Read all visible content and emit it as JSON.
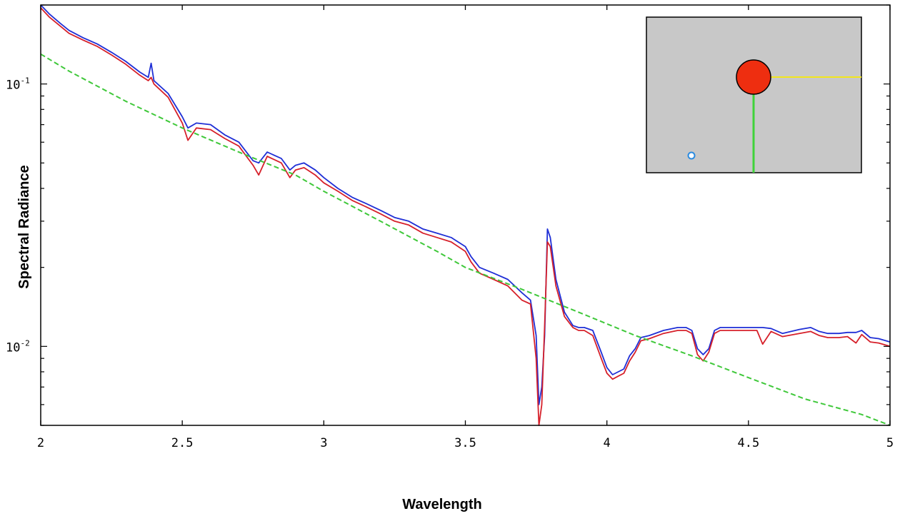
{
  "chart_data": {
    "type": "line",
    "xlabel": "Wavelength",
    "ylabel": "Spectral Radiance",
    "xlim": [
      2,
      5
    ],
    "ylim": [
      0.005,
      0.2
    ],
    "yscale": "log",
    "grid": false,
    "x_ticks": [
      2,
      2.5,
      3,
      3.5,
      4,
      4.5,
      5
    ],
    "x_tick_labels": [
      "2",
      "2.5",
      "3",
      "3.5",
      "4",
      "4.5",
      "5"
    ],
    "y_ticks": [
      {
        "value": 0.1,
        "base": "10",
        "exp": "-1"
      },
      {
        "value": 0.01,
        "base": "10",
        "exp": "-2"
      }
    ],
    "series": [
      {
        "color": "#1f2fd6",
        "x": [
          2.0,
          2.03,
          2.07,
          2.1,
          2.15,
          2.2,
          2.25,
          2.3,
          2.35,
          2.38,
          2.39,
          2.4,
          2.45,
          2.5,
          2.52,
          2.55,
          2.6,
          2.65,
          2.7,
          2.75,
          2.77,
          2.8,
          2.85,
          2.88,
          2.9,
          2.93,
          2.97,
          3.0,
          3.05,
          3.1,
          3.15,
          3.2,
          3.25,
          3.3,
          3.35,
          3.4,
          3.45,
          3.5,
          3.52,
          3.55,
          3.6,
          3.65,
          3.7,
          3.73,
          3.75,
          3.76,
          3.77,
          3.78,
          3.79,
          3.8,
          3.82,
          3.85,
          3.88,
          3.9,
          3.92,
          3.95,
          3.98,
          4.0,
          4.02,
          4.04,
          4.06,
          4.08,
          4.1,
          4.12,
          4.15,
          4.2,
          4.25,
          4.28,
          4.3,
          4.32,
          4.34,
          4.36,
          4.38,
          4.4,
          4.45,
          4.5,
          4.53,
          4.55,
          4.58,
          4.62,
          4.68,
          4.72,
          4.75,
          4.78,
          4.82,
          4.85,
          4.88,
          4.9,
          4.93,
          4.96,
          5.0
        ],
        "y": [
          0.2,
          0.185,
          0.17,
          0.16,
          0.15,
          0.142,
          0.132,
          0.122,
          0.111,
          0.106,
          0.12,
          0.103,
          0.092,
          0.075,
          0.068,
          0.071,
          0.07,
          0.064,
          0.06,
          0.051,
          0.05,
          0.055,
          0.052,
          0.047,
          0.049,
          0.05,
          0.047,
          0.044,
          0.04,
          0.037,
          0.035,
          0.033,
          0.031,
          0.03,
          0.028,
          0.027,
          0.026,
          0.024,
          0.022,
          0.02,
          0.019,
          0.018,
          0.016,
          0.015,
          0.011,
          0.006,
          0.007,
          0.011,
          0.028,
          0.026,
          0.018,
          0.0135,
          0.012,
          0.0118,
          0.0118,
          0.0115,
          0.0095,
          0.0083,
          0.0078,
          0.008,
          0.0082,
          0.0092,
          0.0098,
          0.0108,
          0.011,
          0.0115,
          0.0118,
          0.0118,
          0.0115,
          0.0098,
          0.0093,
          0.0098,
          0.0115,
          0.0118,
          0.0118,
          0.0118,
          0.0118,
          0.0118,
          0.0117,
          0.0112,
          0.0116,
          0.0118,
          0.0114,
          0.0112,
          0.0112,
          0.0113,
          0.0113,
          0.0115,
          0.0108,
          0.0107,
          0.0104
        ]
      },
      {
        "color": "#d6202a",
        "x": [
          2.0,
          2.03,
          2.07,
          2.1,
          2.15,
          2.2,
          2.25,
          2.3,
          2.35,
          2.38,
          2.39,
          2.4,
          2.45,
          2.5,
          2.52,
          2.55,
          2.6,
          2.65,
          2.7,
          2.75,
          2.77,
          2.8,
          2.85,
          2.88,
          2.9,
          2.93,
          2.97,
          3.0,
          3.05,
          3.1,
          3.15,
          3.2,
          3.25,
          3.3,
          3.35,
          3.4,
          3.45,
          3.5,
          3.52,
          3.55,
          3.6,
          3.65,
          3.7,
          3.73,
          3.75,
          3.76,
          3.77,
          3.78,
          3.79,
          3.8,
          3.82,
          3.85,
          3.88,
          3.9,
          3.92,
          3.95,
          3.98,
          4.0,
          4.02,
          4.04,
          4.06,
          4.08,
          4.1,
          4.12,
          4.15,
          4.2,
          4.25,
          4.28,
          4.3,
          4.32,
          4.34,
          4.36,
          4.38,
          4.4,
          4.45,
          4.5,
          4.53,
          4.55,
          4.58,
          4.62,
          4.68,
          4.72,
          4.75,
          4.78,
          4.82,
          4.85,
          4.88,
          4.9,
          4.93,
          4.96,
          5.0
        ],
        "y": [
          0.195,
          0.18,
          0.166,
          0.156,
          0.147,
          0.139,
          0.129,
          0.119,
          0.108,
          0.103,
          0.106,
          0.1,
          0.089,
          0.071,
          0.061,
          0.068,
          0.067,
          0.062,
          0.058,
          0.049,
          0.045,
          0.053,
          0.05,
          0.044,
          0.047,
          0.048,
          0.045,
          0.042,
          0.039,
          0.036,
          0.034,
          0.032,
          0.03,
          0.029,
          0.027,
          0.026,
          0.025,
          0.023,
          0.021,
          0.019,
          0.018,
          0.017,
          0.015,
          0.0145,
          0.009,
          0.005,
          0.006,
          0.012,
          0.025,
          0.024,
          0.017,
          0.013,
          0.0118,
          0.0115,
          0.0115,
          0.011,
          0.009,
          0.0079,
          0.0075,
          0.0077,
          0.0079,
          0.0088,
          0.0095,
          0.0105,
          0.0107,
          0.0112,
          0.0115,
          0.0115,
          0.0112,
          0.0093,
          0.0088,
          0.0095,
          0.0112,
          0.0115,
          0.0115,
          0.0115,
          0.0115,
          0.0102,
          0.0114,
          0.0109,
          0.0112,
          0.0114,
          0.011,
          0.0108,
          0.0108,
          0.0109,
          0.0103,
          0.0111,
          0.0104,
          0.0103,
          0.01
        ]
      },
      {
        "color": "#3fc83a",
        "dashed": true,
        "x": [
          2.0,
          2.1,
          2.3,
          2.5,
          2.7,
          2.9,
          3.0,
          3.2,
          3.4,
          3.5,
          3.7,
          3.9,
          4.1,
          4.3,
          4.5,
          4.7,
          4.9,
          5.0
        ],
        "y": [
          0.13,
          0.112,
          0.086,
          0.068,
          0.055,
          0.045,
          0.039,
          0.03,
          0.023,
          0.02,
          0.0165,
          0.0135,
          0.011,
          0.0092,
          0.0076,
          0.0063,
          0.0055,
          0.005
        ]
      }
    ]
  },
  "inset": {
    "background": "#c8c8c8",
    "sun_color": "#ee2e10",
    "sun_path_color": "#f2e61c",
    "view_path_color": "#3fd33a",
    "sensor_color": "#2b8be0"
  }
}
